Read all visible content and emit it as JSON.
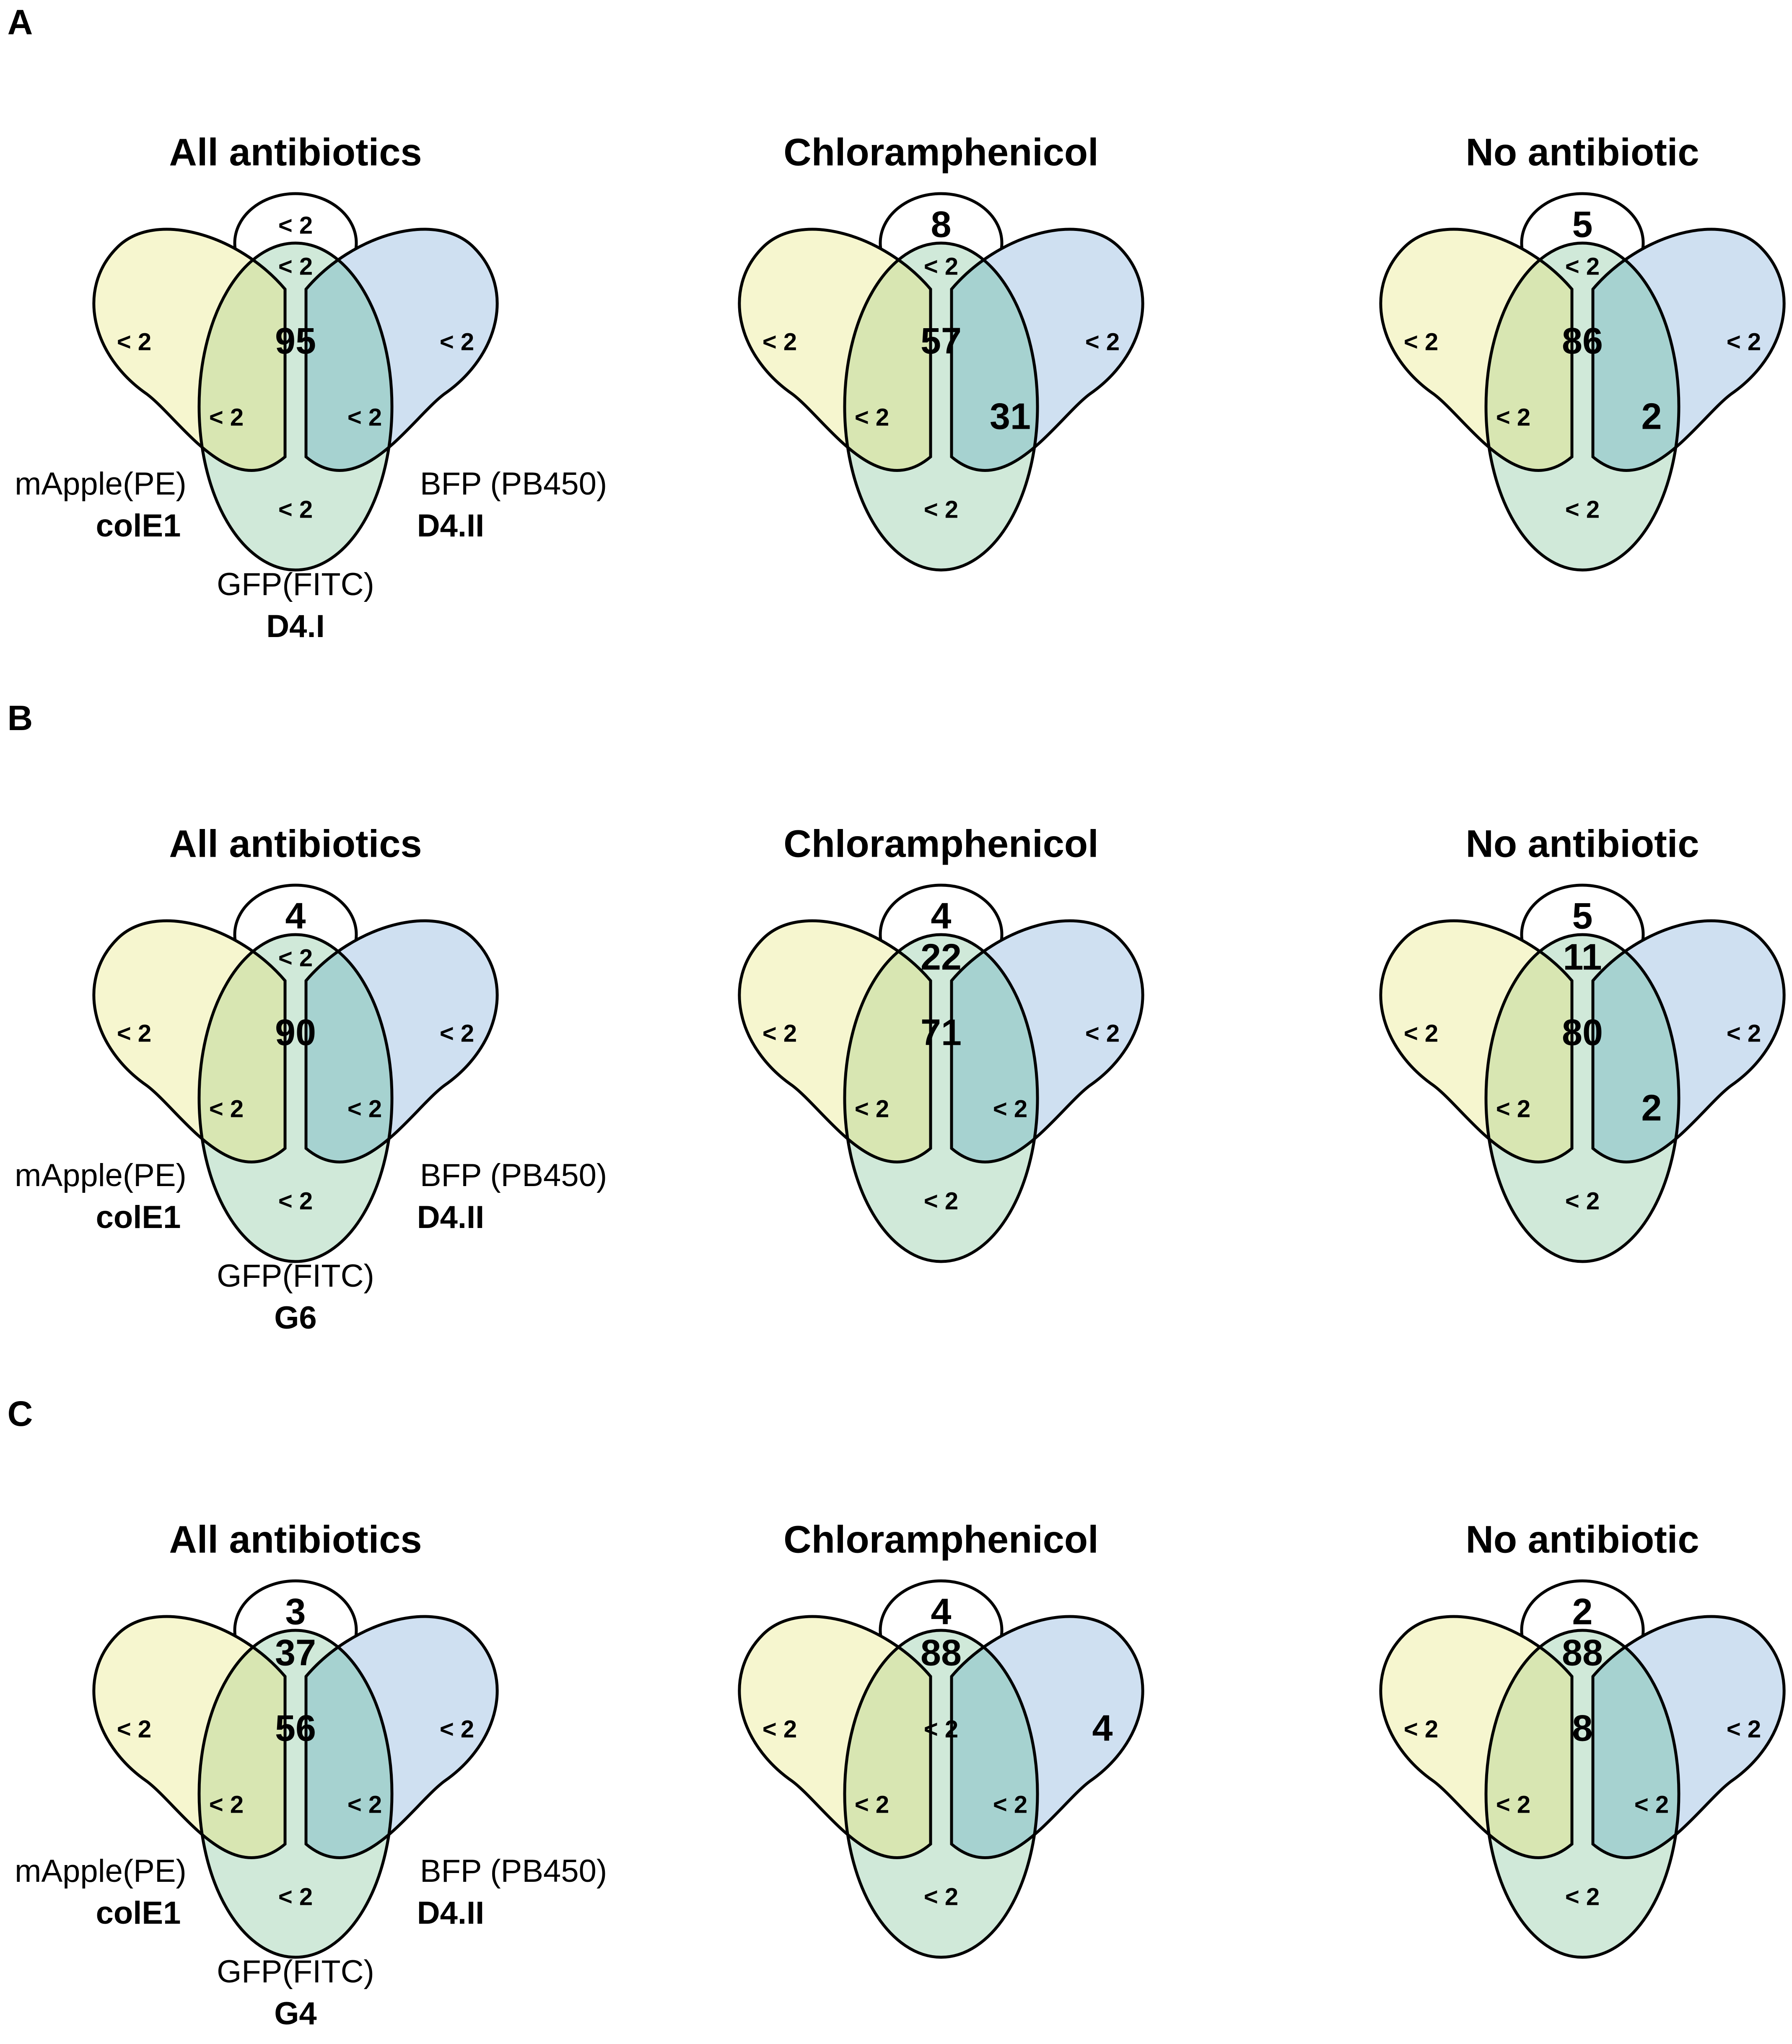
{
  "colors": {
    "mapple_fill": "#f6f6cf",
    "bfp_fill": "#cfe0f1",
    "gfp_fill": "#d0e9d9",
    "mapple_gfp": "#d8e6b2",
    "bfp_gfp": "#a6d2d0",
    "mapple_bfp": "#d9e2cc",
    "triple": "#b8d1b3",
    "outline": "#000000"
  },
  "labels": {
    "mapple": "mApple(PE)",
    "mapple_plasmid": "colE1",
    "bfp": "BFP (PB450)",
    "bfp_plasmid": "D4.II",
    "gfp": "GFP(FITC)"
  },
  "panels": [
    {
      "letter": "A",
      "gfp_plasmid": "D4.I",
      "diagrams": [
        {
          "title": "All antibiotics",
          "top": "< 2",
          "mb": "< 2",
          "triple": "95",
          "m": "< 2",
          "b": "< 2",
          "mg": "< 2",
          "bg": "< 2",
          "g": "< 2"
        },
        {
          "title": "Chloramphenicol",
          "top": "8",
          "mb": "< 2",
          "triple": "57",
          "m": "< 2",
          "b": "< 2",
          "mg": "< 2",
          "bg": "31",
          "g": "< 2"
        },
        {
          "title": "No antibiotic",
          "top": "5",
          "mb": "< 2",
          "triple": "86",
          "m": "< 2",
          "b": "< 2",
          "mg": "< 2",
          "bg": "2",
          "g": "< 2"
        }
      ]
    },
    {
      "letter": "B",
      "gfp_plasmid": "G6",
      "diagrams": [
        {
          "title": "All antibiotics",
          "top": "4",
          "mb": "< 2",
          "triple": "90",
          "m": "< 2",
          "b": "< 2",
          "mg": "< 2",
          "bg": "< 2",
          "g": "< 2"
        },
        {
          "title": "Chloramphenicol",
          "top": "4",
          "mb": "22",
          "triple": "71",
          "m": "< 2",
          "b": "< 2",
          "mg": "< 2",
          "bg": "< 2",
          "g": "< 2"
        },
        {
          "title": "No antibiotic",
          "top": "5",
          "mb": "11",
          "triple": "80",
          "m": "< 2",
          "b": "< 2",
          "mg": "< 2",
          "bg": "2",
          "g": "< 2"
        }
      ]
    },
    {
      "letter": "C",
      "gfp_plasmid": "G4",
      "diagrams": [
        {
          "title": "All antibiotics",
          "top": "3",
          "mb": "37",
          "triple": "56",
          "m": "< 2",
          "b": "< 2",
          "mg": "< 2",
          "bg": "< 2",
          "g": "< 2"
        },
        {
          "title": "Chloramphenicol",
          "top": "4",
          "mb": "88",
          "triple": "< 2",
          "m": "< 2",
          "b": "4",
          "mg": "< 2",
          "bg": "< 2",
          "g": "< 2"
        },
        {
          "title": "No antibiotic",
          "top": "2",
          "mb": "88",
          "triple": "8",
          "m": "< 2",
          "b": "< 2",
          "mg": "< 2",
          "bg": "< 2",
          "g": "< 2"
        }
      ]
    }
  ]
}
